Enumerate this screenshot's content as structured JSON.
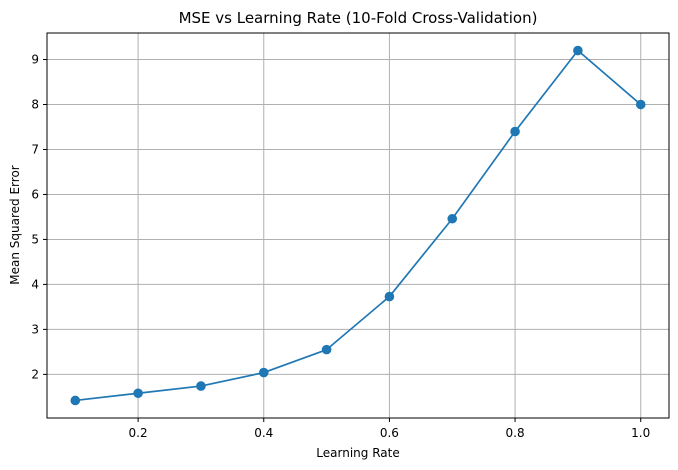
{
  "chart_data": {
    "type": "line",
    "title": "MSE vs Learning Rate (10-Fold Cross-Validation)",
    "xlabel": "Learning Rate",
    "ylabel": "Mean Squared Error",
    "x": [
      0.1,
      0.2,
      0.3,
      0.4,
      0.5,
      0.6,
      0.7,
      0.8,
      0.9,
      1.0
    ],
    "series": [
      {
        "values": [
          1.42,
          1.58,
          1.74,
          2.04,
          2.55,
          3.73,
          5.46,
          7.4,
          9.2,
          8.0
        ],
        "color": "#1f77b4",
        "marker": "circle"
      }
    ],
    "xlim": [
      0.055,
      1.045
    ],
    "ylim": [
      1.03,
      9.59
    ],
    "xticks": [
      "0.2",
      "0.4",
      "0.6",
      "0.8",
      "1.0"
    ],
    "yticks": [
      "2",
      "3",
      "4",
      "5",
      "6",
      "7",
      "8",
      "9"
    ],
    "grid": true,
    "grid_color": "#b0b0b0",
    "axis_color": "#000000"
  }
}
